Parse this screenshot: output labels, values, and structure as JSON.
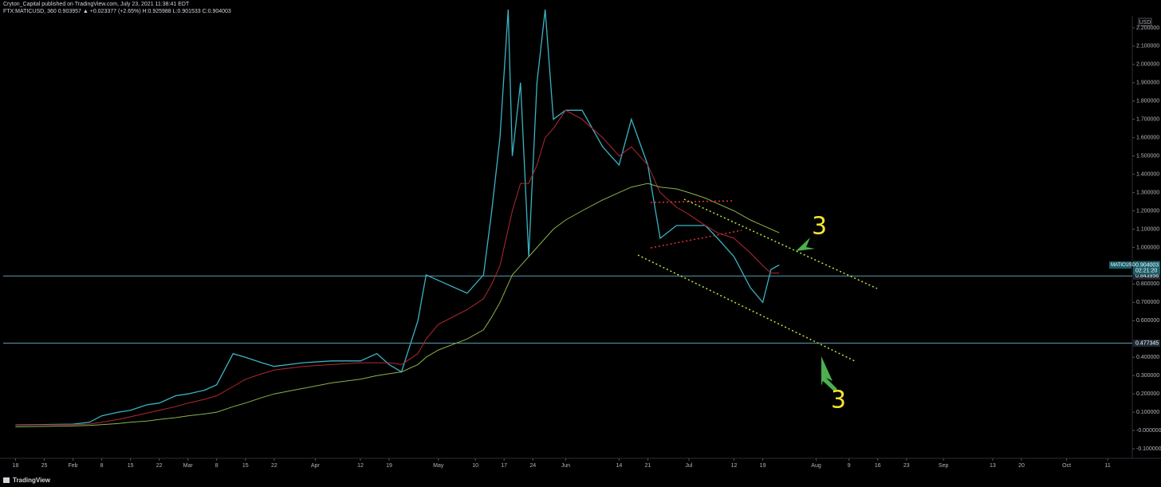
{
  "header": {
    "title": "Cryton_Capital published on TradingView.com, July 23, 2021 11:38:41 EDT",
    "subtitle": "FTX:MATICUSD, 360 0.903957 ▲ +0.023377 (+2.65%) H:0.925988 L:0.901533 C:0.904003"
  },
  "footer": {
    "brand": "TradingView"
  },
  "chart_data": {
    "type": "line",
    "currency": "USD",
    "symbol": "MATICUSD",
    "last_price": 0.904003,
    "countdown": "02:21:20",
    "hlines": [
      0.843956,
      0.477345
    ],
    "annotations": [
      "3",
      "3"
    ],
    "x": [
      "Jan 18",
      "Jan 25",
      "Feb 1",
      "Feb 5",
      "Feb 8",
      "Feb 12",
      "Feb 15",
      "Feb 19",
      "Feb 22",
      "Feb 26",
      "Mar 1",
      "Mar 5",
      "Mar 8",
      "Mar 12",
      "Mar 15",
      "Mar 19",
      "Mar 22",
      "Mar 29",
      "Apr 5",
      "Apr 12",
      "Apr 16",
      "Apr 19",
      "Apr 22",
      "Apr 26",
      "Apr 28",
      "May 1",
      "May 8",
      "May 12",
      "May 14",
      "May 16",
      "May 18",
      "May 19",
      "May 21",
      "May 23",
      "May 25",
      "May 27",
      "May 29",
      "Jun 1",
      "Jun 5",
      "Jun 10",
      "Jun 14",
      "Jun 17",
      "Jun 21",
      "Jun 24",
      "Jun 28",
      "Jul 1",
      "Jul 5",
      "Jul 8",
      "Jul 12",
      "Jul 16",
      "Jul 19",
      "Jul 21",
      "Jul 23"
    ],
    "series": [
      {
        "color": "#3bb3c3",
        "values": [
          0.03,
          0.032,
          0.035,
          0.045,
          0.08,
          0.1,
          0.11,
          0.14,
          0.15,
          0.19,
          0.2,
          0.22,
          0.25,
          0.42,
          0.4,
          0.37,
          0.35,
          0.37,
          0.38,
          0.38,
          0.42,
          0.36,
          0.32,
          0.6,
          0.85,
          0.82,
          0.75,
          0.85,
          1.2,
          1.6,
          2.3,
          1.5,
          1.9,
          0.95,
          1.9,
          2.3,
          1.7,
          1.75,
          1.75,
          1.55,
          1.45,
          1.7,
          1.45,
          1.05,
          1.12,
          1.12,
          1.12,
          1.05,
          0.95,
          0.78,
          0.7,
          0.88,
          0.904
        ]
      },
      {
        "color": "#b22833",
        "values": [
          0.03,
          0.031,
          0.032,
          0.035,
          0.045,
          0.06,
          0.075,
          0.095,
          0.11,
          0.13,
          0.15,
          0.17,
          0.19,
          0.24,
          0.28,
          0.31,
          0.33,
          0.35,
          0.36,
          0.37,
          0.37,
          0.37,
          0.36,
          0.42,
          0.5,
          0.58,
          0.66,
          0.72,
          0.8,
          0.9,
          1.1,
          1.2,
          1.35,
          1.35,
          1.45,
          1.6,
          1.65,
          1.75,
          1.7,
          1.6,
          1.5,
          1.55,
          1.45,
          1.3,
          1.22,
          1.18,
          1.12,
          1.08,
          1.05,
          0.97,
          0.9,
          0.86,
          0.86
        ]
      },
      {
        "color": "#8ab34a",
        "values": [
          0.02,
          0.022,
          0.025,
          0.028,
          0.032,
          0.038,
          0.045,
          0.052,
          0.06,
          0.07,
          0.08,
          0.09,
          0.1,
          0.13,
          0.15,
          0.18,
          0.2,
          0.23,
          0.26,
          0.28,
          0.3,
          0.31,
          0.32,
          0.36,
          0.4,
          0.44,
          0.5,
          0.55,
          0.62,
          0.7,
          0.8,
          0.85,
          0.9,
          0.95,
          1.0,
          1.05,
          1.1,
          1.15,
          1.2,
          1.26,
          1.3,
          1.33,
          1.35,
          1.33,
          1.32,
          1.3,
          1.27,
          1.24,
          1.2,
          1.15,
          1.12,
          1.1,
          1.08
        ]
      }
    ],
    "xlim": [
      "Jan 15",
      "Oct 17"
    ],
    "xticks": [
      {
        "value": "Jan 18",
        "label": "18"
      },
      {
        "value": "Jan 25",
        "label": "25"
      },
      {
        "value": "Feb 1",
        "label": "Feb"
      },
      {
        "value": "Feb 8",
        "label": "8"
      },
      {
        "value": "Feb 15",
        "label": "15"
      },
      {
        "value": "Feb 22",
        "label": "22"
      },
      {
        "value": "Mar 1",
        "label": "Mar"
      },
      {
        "value": "Mar 8",
        "label": "8"
      },
      {
        "value": "Mar 15",
        "label": "15"
      },
      {
        "value": "Mar 22",
        "label": "22"
      },
      {
        "value": "Apr 1",
        "label": "Apr"
      },
      {
        "value": "Apr 12",
        "label": "12"
      },
      {
        "value": "Apr 19",
        "label": "19"
      },
      {
        "value": "May 1",
        "label": "May"
      },
      {
        "value": "May 10",
        "label": "10"
      },
      {
        "value": "May 17",
        "label": "17"
      },
      {
        "value": "May 24",
        "label": "24"
      },
      {
        "value": "Jun 1",
        "label": "Jun"
      },
      {
        "value": "Jun 14",
        "label": "14"
      },
      {
        "value": "Jun 21",
        "label": "21"
      },
      {
        "value": "Jul 1",
        "label": "Jul"
      },
      {
        "value": "Jul 12",
        "label": "12"
      },
      {
        "value": "Jul 19",
        "label": "19"
      },
      {
        "value": "Aug 1",
        "label": "Aug"
      },
      {
        "value": "Aug 9",
        "label": "9"
      },
      {
        "value": "Aug 16",
        "label": "16"
      },
      {
        "value": "Aug 23",
        "label": "23"
      },
      {
        "value": "Sep 1",
        "label": "Sep"
      },
      {
        "value": "Sep 13",
        "label": "13"
      },
      {
        "value": "Sep 20",
        "label": "20"
      },
      {
        "value": "Oct 1",
        "label": "Oct"
      },
      {
        "value": "Oct 11",
        "label": "11"
      }
    ],
    "ylim": [
      -0.152,
      2.265
    ],
    "yticks": [
      {
        "value": 2.2,
        "label": "2.200000"
      },
      {
        "value": 2.1,
        "label": "2.100000"
      },
      {
        "value": 2.0,
        "label": "2.000000"
      },
      {
        "value": 1.9,
        "label": "1.900000"
      },
      {
        "value": 1.8,
        "label": "1.800000"
      },
      {
        "value": 1.7,
        "label": "1.700000"
      },
      {
        "value": 1.6,
        "label": "1.600000"
      },
      {
        "value": 1.5,
        "label": "1.500000"
      },
      {
        "value": 1.4,
        "label": "1.400000"
      },
      {
        "value": 1.3,
        "label": "1.300000"
      },
      {
        "value": 1.2,
        "label": "1.200000"
      },
      {
        "value": 1.1,
        "label": "1.100000"
      },
      {
        "value": 1.0,
        "label": "1.000000"
      },
      {
        "value": 0.8,
        "label": "0.800000"
      },
      {
        "value": 0.7,
        "label": "0.700000"
      },
      {
        "value": 0.6,
        "label": "0.600000"
      },
      {
        "value": 0.4,
        "label": "0.400000"
      },
      {
        "value": 0.3,
        "label": "0.300000"
      },
      {
        "value": 0.2,
        "label": "0.200000"
      },
      {
        "value": 0.1,
        "label": "0.100000"
      },
      {
        "value": 0,
        "label": "-0.000000"
      },
      {
        "value": -0.1,
        "label": "-0.100000"
      }
    ]
  }
}
